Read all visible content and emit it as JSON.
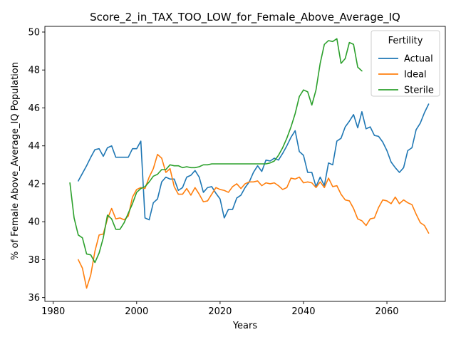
{
  "chart_data": {
    "type": "line",
    "title": "Score_2_in_TAX_TOO_LOW_for_Female_Above_Average_IQ",
    "xlabel": "Years",
    "ylabel": "% of Female Above_Average_IQ Population",
    "xlim": [
      1978,
      2074
    ],
    "ylim": [
      35.8,
      50.3
    ],
    "xticks": [
      1980,
      2000,
      2020,
      2040,
      2060
    ],
    "yticks": [
      36,
      38,
      40,
      42,
      44,
      46,
      48,
      50
    ],
    "grid": false,
    "legend": {
      "title": "Fertility",
      "placement": "top-right"
    },
    "series": [
      {
        "name": "Actual",
        "color": "#1f77b4",
        "x": [
          1986,
          1987,
          1988,
          1989,
          1990,
          1991,
          1992,
          1993,
          1994,
          1995,
          1996,
          1997,
          1998,
          1999,
          2000,
          2001,
          2002,
          2003,
          2004,
          2005,
          2006,
          2007,
          2008,
          2009,
          2010,
          2011,
          2012,
          2013,
          2014,
          2015,
          2016,
          2017,
          2018,
          2019,
          2020,
          2021,
          2022,
          2023,
          2024,
          2025,
          2026,
          2027,
          2028,
          2029,
          2030,
          2031,
          2032,
          2033,
          2034,
          2035,
          2036,
          2037,
          2038,
          2039,
          2040,
          2041,
          2042,
          2043,
          2044,
          2045,
          2046,
          2047,
          2048,
          2049,
          2050,
          2051,
          2052,
          2053,
          2054,
          2055,
          2056,
          2057,
          2058,
          2059,
          2060,
          2061,
          2062,
          2063,
          2064,
          2065,
          2066,
          2067,
          2068,
          2069,
          2070
        ],
        "y": [
          42.15,
          42.55,
          42.95,
          43.4,
          43.8,
          43.85,
          43.45,
          43.9,
          44.0,
          43.4,
          43.4,
          43.4,
          43.4,
          43.85,
          43.85,
          44.25,
          40.2,
          40.1,
          41.0,
          41.2,
          42.1,
          42.35,
          42.25,
          42.25,
          41.65,
          41.8,
          42.35,
          42.45,
          42.7,
          42.35,
          41.55,
          41.8,
          41.85,
          41.5,
          41.2,
          40.2,
          40.65,
          40.65,
          41.25,
          41.4,
          41.8,
          42.1,
          42.6,
          42.95,
          42.65,
          43.25,
          43.2,
          43.35,
          43.25,
          43.6,
          44.0,
          44.45,
          44.8,
          43.7,
          43.5,
          42.6,
          42.6,
          41.85,
          42.35,
          41.9,
          43.1,
          43.0,
          44.25,
          44.4,
          45.0,
          45.3,
          45.65,
          44.95,
          45.8,
          44.9,
          45.0,
          44.55,
          44.5,
          44.2,
          43.75,
          43.15,
          42.85,
          42.6,
          42.85,
          43.75,
          43.9,
          44.85,
          45.2,
          45.75,
          46.2
        ]
      },
      {
        "name": "Ideal",
        "color": "#ff7f0e",
        "x": [
          1986,
          1987,
          1988,
          1989,
          1990,
          1991,
          1992,
          1993,
          1994,
          1995,
          1996,
          1997,
          1998,
          1999,
          2000,
          2001,
          2002,
          2003,
          2004,
          2005,
          2006,
          2007,
          2008,
          2009,
          2010,
          2011,
          2012,
          2013,
          2014,
          2015,
          2016,
          2017,
          2018,
          2019,
          2020,
          2021,
          2022,
          2023,
          2024,
          2025,
          2026,
          2027,
          2028,
          2029,
          2030,
          2031,
          2032,
          2033,
          2034,
          2035,
          2036,
          2037,
          2038,
          2039,
          2040,
          2041,
          2042,
          2043,
          2044,
          2045,
          2046,
          2047,
          2048,
          2049,
          2050,
          2051,
          2052,
          2053,
          2054,
          2055,
          2056,
          2057,
          2058,
          2059,
          2060,
          2061,
          2062,
          2063,
          2064,
          2065,
          2066,
          2067,
          2068,
          2069,
          2070
        ],
        "y": [
          38.0,
          37.55,
          36.5,
          37.2,
          38.45,
          39.3,
          39.35,
          40.15,
          40.7,
          40.15,
          40.2,
          40.1,
          40.3,
          41.3,
          41.7,
          41.8,
          41.75,
          42.35,
          42.8,
          43.55,
          43.35,
          42.6,
          42.8,
          41.85,
          41.45,
          41.45,
          41.75,
          41.4,
          41.8,
          41.45,
          41.05,
          41.1,
          41.45,
          41.8,
          41.7,
          41.65,
          41.55,
          41.85,
          42.0,
          41.75,
          42.0,
          42.1,
          42.1,
          42.15,
          41.9,
          42.05,
          42.0,
          42.05,
          41.9,
          41.7,
          41.8,
          42.3,
          42.25,
          42.35,
          42.05,
          42.1,
          42.05,
          41.8,
          42.1,
          41.8,
          42.3,
          41.85,
          41.9,
          41.45,
          41.15,
          41.1,
          40.7,
          40.15,
          40.05,
          39.8,
          40.15,
          40.2,
          40.75,
          41.15,
          41.1,
          40.95,
          41.3,
          40.95,
          41.15,
          41.0,
          40.9,
          40.4,
          39.95,
          39.8,
          39.4
        ]
      },
      {
        "name": "Sterile",
        "color": "#2ca02c",
        "x": [
          1984,
          1985,
          1986,
          1987,
          1988,
          1989,
          1990,
          1991,
          1992,
          1993,
          1994,
          1995,
          1996,
          1997,
          1998,
          1999,
          2000,
          2001,
          2002,
          2003,
          2004,
          2005,
          2006,
          2007,
          2008,
          2009,
          2010,
          2011,
          2012,
          2013,
          2014,
          2015,
          2016,
          2017,
          2018,
          2019,
          2020,
          2021,
          2022,
          2023,
          2024,
          2025,
          2026,
          2027,
          2028,
          2029,
          2030,
          2031,
          2032,
          2033,
          2034,
          2035,
          2036,
          2037,
          2038,
          2039,
          2040,
          2041,
          2042,
          2043,
          2044,
          2045,
          2046,
          2047,
          2048,
          2049,
          2050,
          2051,
          2052,
          2053,
          2054
        ],
        "y": [
          42.05,
          40.2,
          39.3,
          39.15,
          38.3,
          38.25,
          37.85,
          38.35,
          39.15,
          40.35,
          40.15,
          39.6,
          39.6,
          39.95,
          40.45,
          40.95,
          41.55,
          41.75,
          41.85,
          42.1,
          42.4,
          42.5,
          42.75,
          42.75,
          43.0,
          42.95,
          42.95,
          42.85,
          42.9,
          42.85,
          42.85,
          42.9,
          43.0,
          43.0,
          43.05,
          43.05,
          43.05,
          43.05,
          43.05,
          43.05,
          43.05,
          43.05,
          43.05,
          43.05,
          43.05,
          43.05,
          43.05,
          43.05,
          43.1,
          43.2,
          43.5,
          43.9,
          44.4,
          45.0,
          45.7,
          46.6,
          46.95,
          46.85,
          46.15,
          46.95,
          48.35,
          49.35,
          49.55,
          49.5,
          49.65,
          48.35,
          48.6,
          49.45,
          49.35,
          48.15,
          47.95
        ]
      }
    ]
  }
}
